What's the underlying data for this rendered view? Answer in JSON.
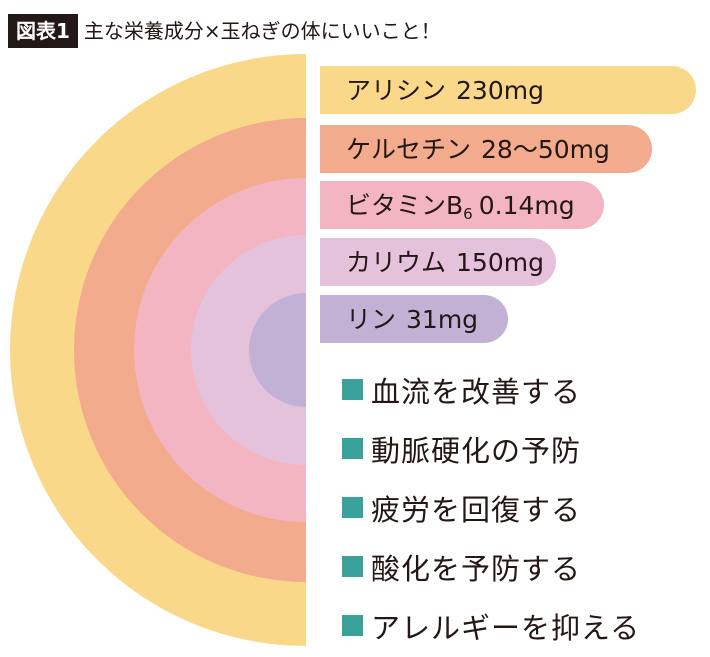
{
  "header": {
    "figure_label": "図表1",
    "title": "主な栄養成分×玉ねぎの体にいいこと！"
  },
  "chart_data": {
    "type": "bar",
    "series": [
      {
        "label": "アリシン",
        "amount": "230",
        "unit": "mg",
        "value": 230,
        "color": "#f9d88a"
      },
      {
        "label": "ケルセチン",
        "amount": "28〜50",
        "unit": "mg",
        "value": 50,
        "color": "#f2ab8c"
      },
      {
        "label": "ビタミンB",
        "sub": "6",
        "amount": "0.14",
        "unit": "mg",
        "value": 0.14,
        "color": "#f3b5c2"
      },
      {
        "label": "カリウム",
        "amount": "150",
        "unit": "mg",
        "value": 150,
        "color": "#e5c2dc"
      },
      {
        "label": "リン",
        "amount": "31",
        "unit": "mg",
        "value": 31,
        "color": "#c2b1d4"
      }
    ]
  },
  "benefits": [
    "血流を改善する",
    "動脈硬化の予防",
    "疲労を回復する",
    "酸化を予防する",
    "アレルギーを抑える"
  ],
  "colors": {
    "accent_square": "#3aa19b",
    "text": "#231815"
  }
}
